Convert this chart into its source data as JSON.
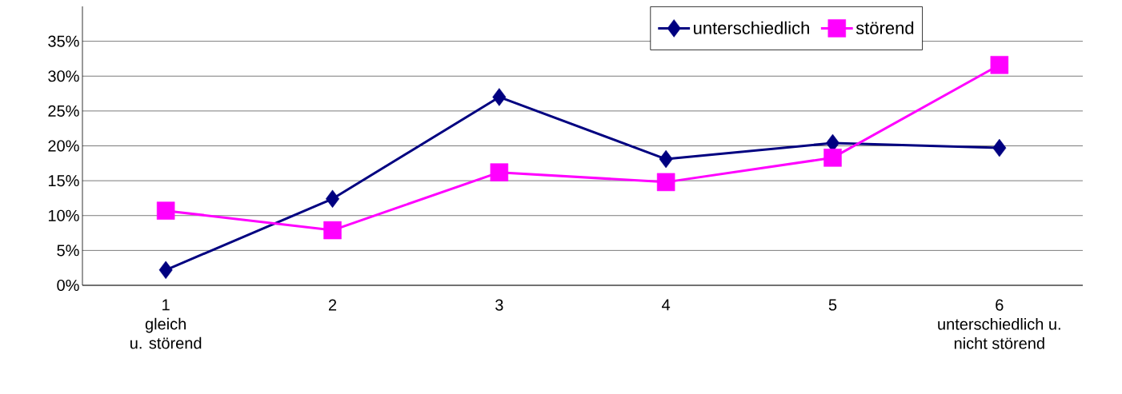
{
  "chart_data": {
    "type": "line",
    "categories": [
      "1\ngleich\nu. störend",
      "2",
      "3",
      "4",
      "5",
      "6\nunterschiedlich u.\nnicht störend"
    ],
    "series": [
      {
        "name": "unterschiedlich",
        "color": "#000080",
        "marker": "diamond",
        "values": [
          2.2,
          12.4,
          27.0,
          18.1,
          20.4,
          19.7
        ]
      },
      {
        "name": "störend",
        "color": "#ff00ff",
        "marker": "square",
        "values": [
          10.7,
          7.9,
          16.2,
          14.8,
          18.3,
          31.6
        ]
      }
    ],
    "ylim": [
      0,
      40
    ],
    "yticks": [
      {
        "value": 0,
        "label": "0%"
      },
      {
        "value": 5,
        "label": "5%"
      },
      {
        "value": 10,
        "label": "10%"
      },
      {
        "value": 15,
        "label": "15%"
      },
      {
        "value": 20,
        "label": "20%"
      },
      {
        "value": 25,
        "label": "25%"
      },
      {
        "value": 30,
        "label": "30%"
      },
      {
        "value": 35,
        "label": "35%"
      }
    ],
    "grid": "y",
    "legend": "top right",
    "line_style": "solid"
  }
}
